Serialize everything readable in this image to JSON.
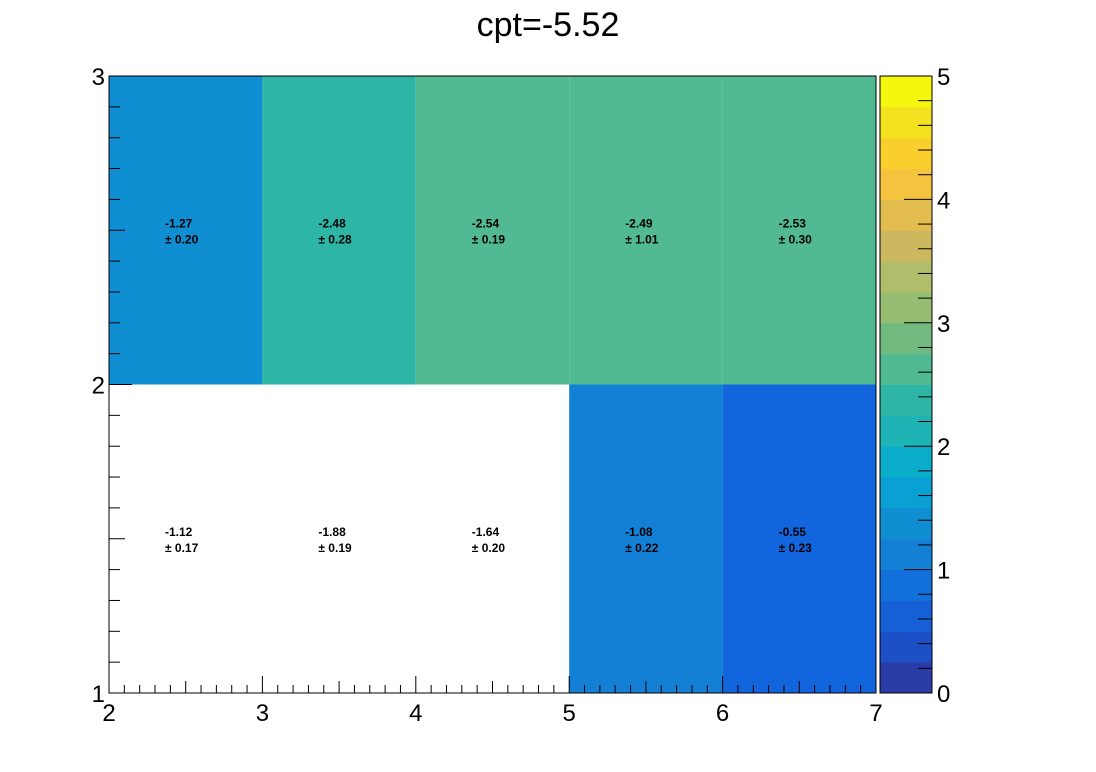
{
  "chart_data": {
    "type": "heatmap",
    "title": "cpt=-5.52",
    "x_edges": [
      2,
      3,
      4,
      5,
      6,
      7
    ],
    "y_edges": [
      1,
      2,
      3
    ],
    "xlim": [
      2,
      7
    ],
    "ylim": [
      1,
      3
    ],
    "x_ticks": [
      "2",
      "3",
      "4",
      "5",
      "6",
      "7"
    ],
    "y_ticks": [
      "1",
      "2",
      "3"
    ],
    "color_scale": {
      "min": 0,
      "max": 5,
      "ticks": [
        "0",
        "1",
        "2",
        "3",
        "4",
        "5"
      ],
      "steps": 20,
      "colors": [
        "#2b3ca8",
        "#1d4fc6",
        "#1560d6",
        "#1170d9",
        "#1380d6",
        "#108ed2",
        "#0aa0d4",
        "#0aaecb",
        "#1eb3b4",
        "#2db5a6",
        "#4fba92",
        "#72bb80",
        "#96be73",
        "#b0bd6a",
        "#ccb85f",
        "#e3bc4f",
        "#f5c33e",
        "#f9ce2d",
        "#f4e120",
        "#f6f70f"
      ]
    },
    "cells": [
      {
        "row": 1,
        "col": 0,
        "value": -1.27,
        "label": "-1.27",
        "error": "± 0.20",
        "color": "#108ed2"
      },
      {
        "row": 1,
        "col": 1,
        "value": -2.48,
        "label": "-2.48",
        "error": "± 0.28",
        "color": "#2db5a6"
      },
      {
        "row": 1,
        "col": 2,
        "value": -2.54,
        "label": "-2.54",
        "error": "± 0.19",
        "color": "#51ba92"
      },
      {
        "row": 1,
        "col": 3,
        "value": -2.49,
        "label": "-2.49",
        "error": "± 1.01",
        "color": "#51ba92"
      },
      {
        "row": 1,
        "col": 4,
        "value": -2.53,
        "label": "-2.53",
        "error": "± 0.30",
        "color": "#51ba92"
      },
      {
        "row": 0,
        "col": 0,
        "value": -1.12,
        "label": "-1.12",
        "error": "± 0.17",
        "color": "#ffffff"
      },
      {
        "row": 0,
        "col": 1,
        "value": -1.88,
        "label": "-1.88",
        "error": "± 0.19",
        "color": "#ffffff"
      },
      {
        "row": 0,
        "col": 2,
        "value": -1.64,
        "label": "-1.64",
        "error": "± 0.20",
        "color": "#ffffff"
      },
      {
        "row": 0,
        "col": 3,
        "value": -1.08,
        "label": "-1.08",
        "error": "± 0.22",
        "color": "#1380d6"
      },
      {
        "row": 0,
        "col": 4,
        "value": -0.55,
        "label": "-0.55",
        "error": "± 0.23",
        "color": "#1265dc"
      }
    ]
  }
}
